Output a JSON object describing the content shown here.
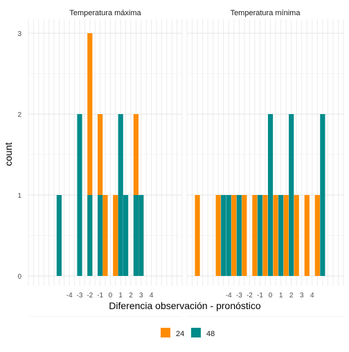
{
  "chart_data": {
    "type": "bar",
    "xlabel": "Diferencia observación - pronóstico",
    "ylabel": "count",
    "ylim": [
      0,
      3
    ],
    "y_ticks": [
      0,
      1,
      2,
      3
    ],
    "x_ticks": [
      -4,
      -3,
      -2,
      -1,
      0,
      1,
      2,
      3,
      4
    ],
    "x_tick_labels": [
      "-4",
      "-3",
      "-2",
      "-1",
      "0",
      "1",
      "2",
      "3",
      "4"
    ],
    "grid": true,
    "legend": {
      "position": "bottom",
      "entries": [
        {
          "label": "24",
          "color": "#FF8C00"
        },
        {
          "label": "48",
          "color": "#008B8B"
        }
      ]
    },
    "panels": [
      {
        "title": "Temperatura máxima",
        "series": [
          {
            "name": "24",
            "x": [
              -2,
              -1,
              -0.5,
              0.5,
              2.5,
              3,
              3.5
            ],
            "values": [
              3,
              2,
              1,
              1,
              2,
              1,
              0
            ]
          },
          {
            "name": "48",
            "x": [
              -5,
              -3,
              -2,
              -1,
              1,
              1.5,
              2.5,
              3
            ],
            "values": [
              1,
              2,
              1,
              1,
              2,
              1,
              1,
              1
            ]
          }
        ]
      },
      {
        "title": "Temperatura mínima",
        "series": [
          {
            "name": "24",
            "x": [
              -7,
              -5,
              -3.5,
              -2.5,
              -1.5,
              -0.5,
              0.5,
              1.5,
              2.5,
              3.5,
              4.5
            ],
            "values": [
              1,
              1,
              1,
              1,
              1,
              1,
              1,
              1,
              1,
              1,
              1
            ]
          },
          {
            "name": "48",
            "x": [
              -4.5,
              -4,
              -3,
              -1,
              0,
              1,
              2,
              5
            ],
            "values": [
              1,
              1,
              1,
              1,
              2,
              1,
              2,
              2
            ]
          }
        ]
      }
    ]
  }
}
